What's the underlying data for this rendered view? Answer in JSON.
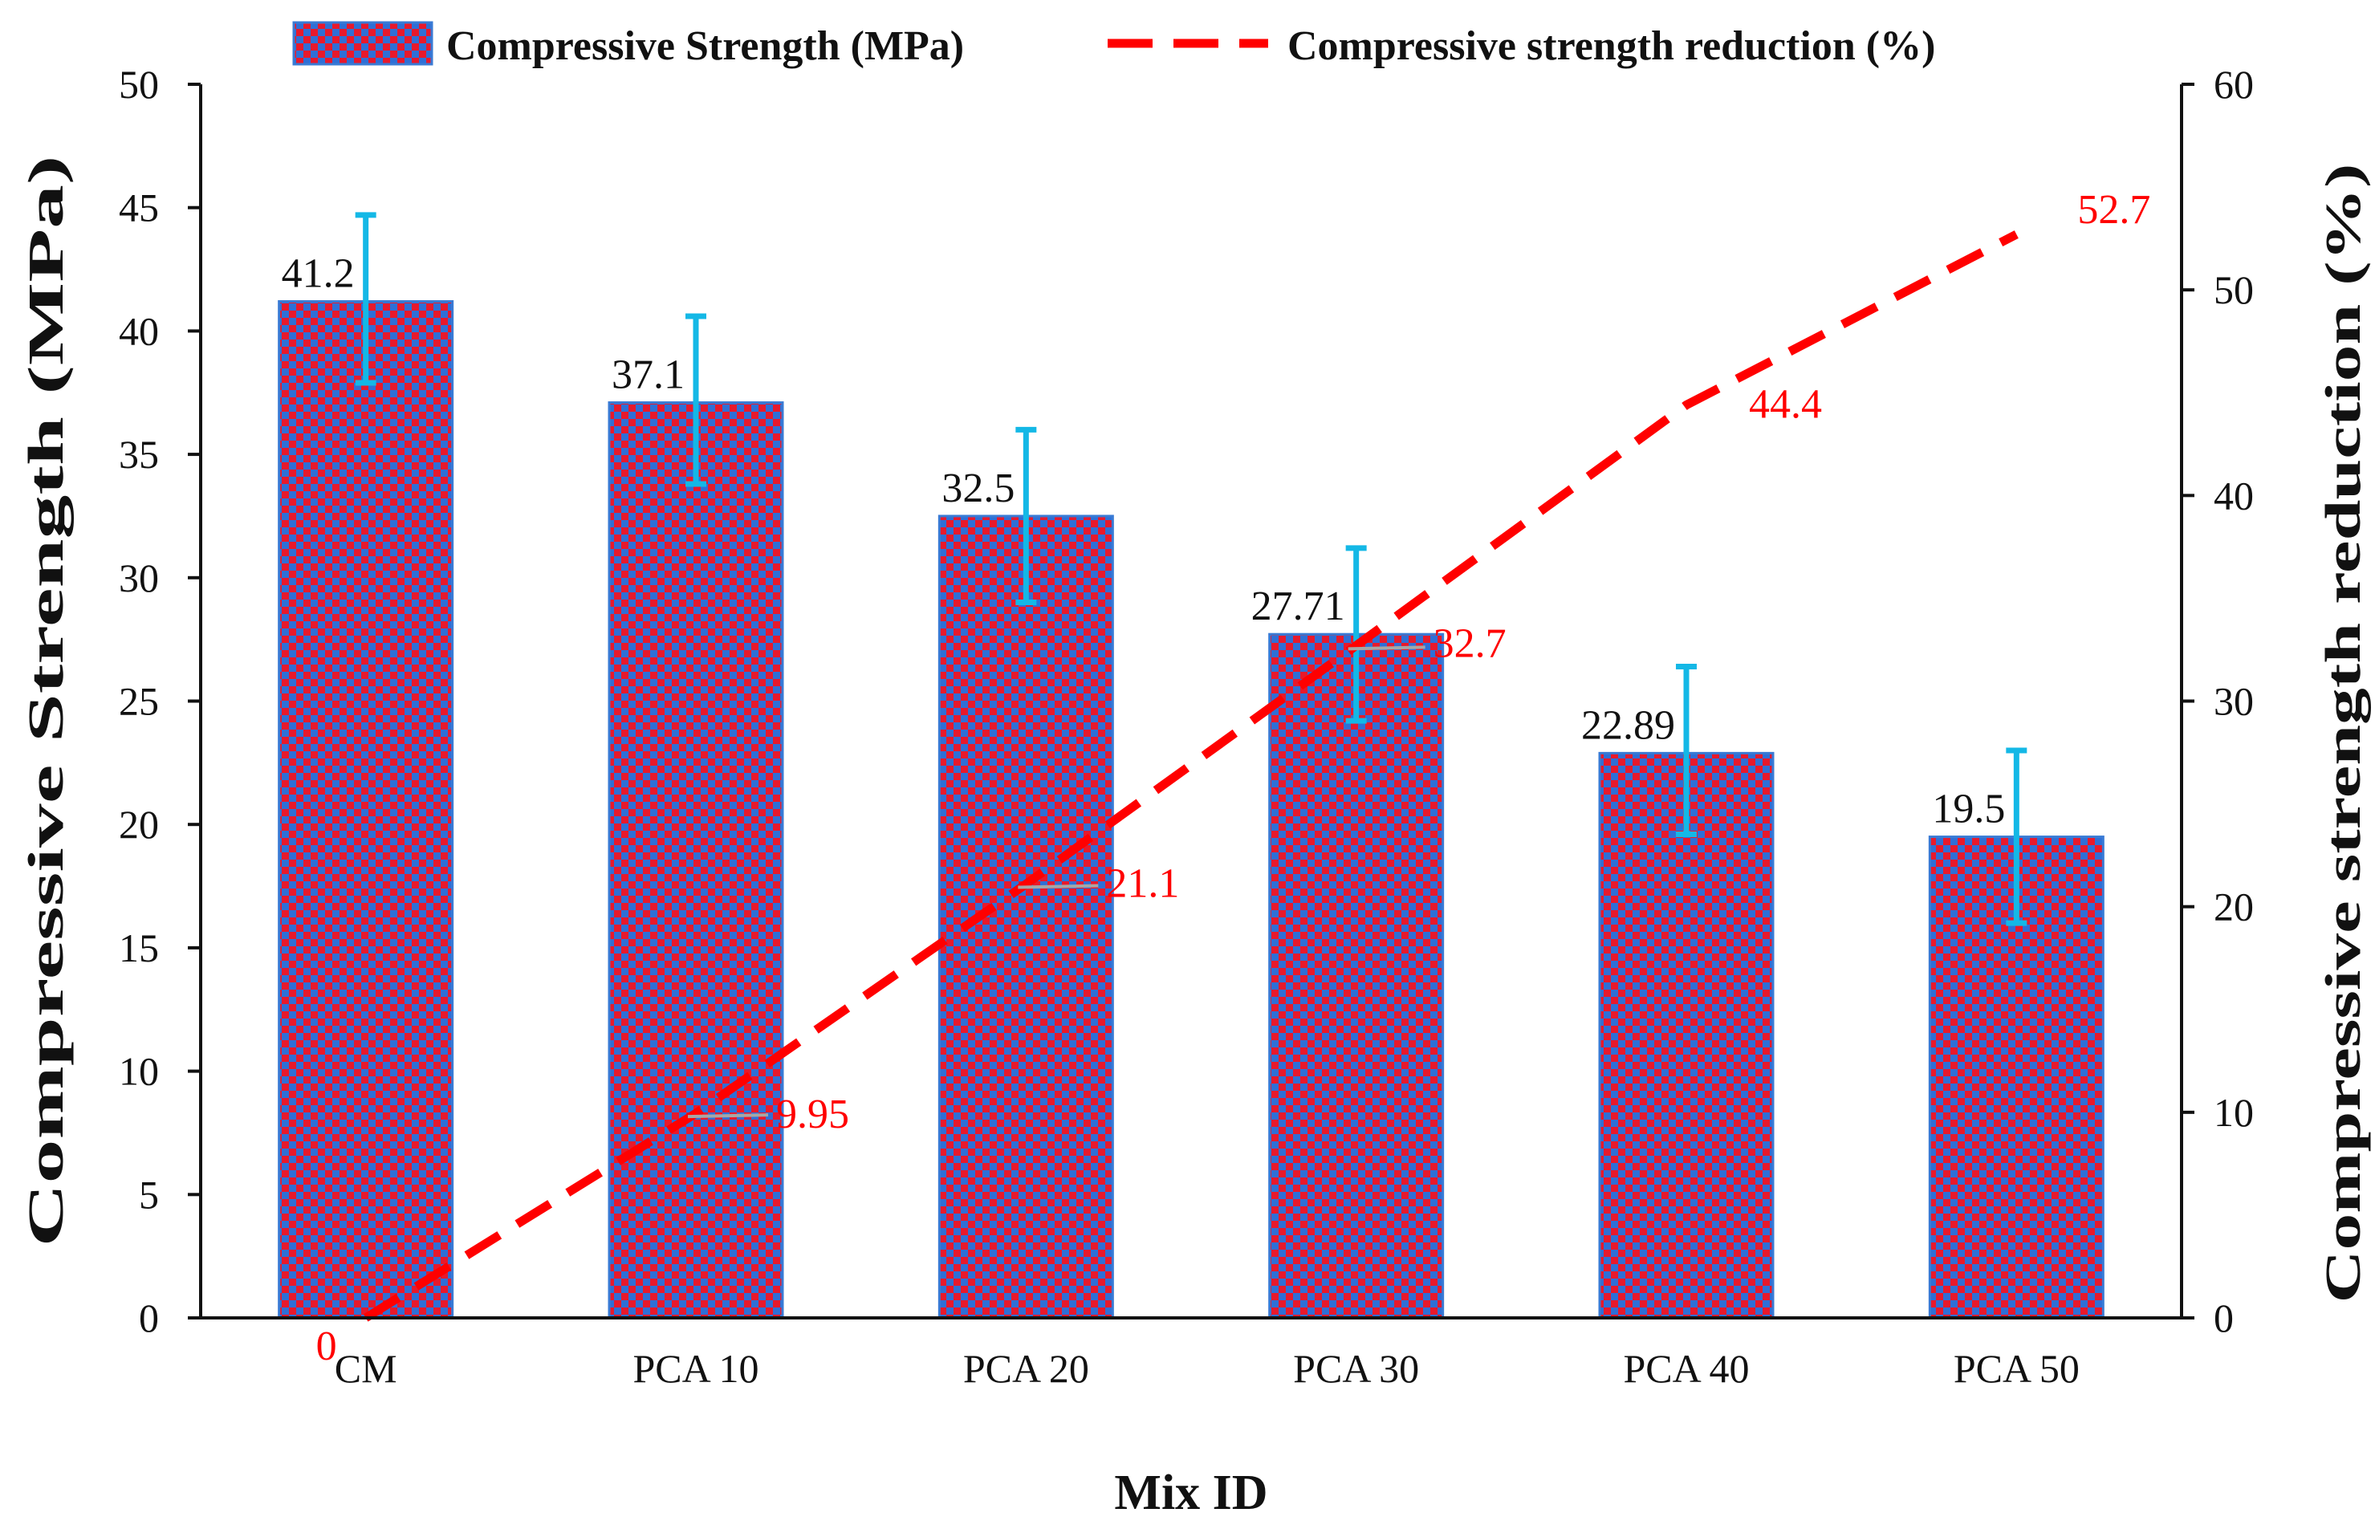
{
  "chart_data": {
    "type": "bar",
    "categories": [
      "CM",
      "PCA 10",
      "PCA 20",
      "PCA 30",
      "PCA 40",
      "PCA 50"
    ],
    "series": [
      {
        "name": "Compressive Strength (MPa)",
        "type": "bar",
        "axis": "left",
        "values": [
          41.2,
          37.1,
          32.5,
          27.71,
          22.89,
          19.5
        ],
        "labels": [
          "41.2",
          "37.1",
          "32.5",
          "27.71",
          "22.89",
          "19.5"
        ],
        "error_low": [
          37.9,
          33.8,
          29.0,
          24.2,
          19.6,
          16.0
        ],
        "error_high": [
          44.7,
          40.6,
          36.0,
          31.2,
          26.4,
          23.0
        ],
        "color": "#e8192c",
        "pattern_color": "#2f6fd6",
        "error_color": "#14b8e6"
      },
      {
        "name": "Compressive strength reduction (%)",
        "type": "line",
        "axis": "right",
        "style": "dashed",
        "values": [
          0,
          9.95,
          21.1,
          32.7,
          44.4,
          52.7
        ],
        "labels": [
          "0",
          "9.95",
          "21.1",
          "32.7",
          "44.4",
          "52.7"
        ],
        "color": "#ff0000"
      }
    ],
    "xlabel": "Mix ID",
    "ylabel": "Compressive Strength (MPa)",
    "ylabel_right": "Compressive strength reduction (%)",
    "ylim": [
      0,
      50
    ],
    "ylim_right": [
      0,
      60
    ],
    "yticks": [
      "0",
      "5",
      "10",
      "15",
      "20",
      "25",
      "30",
      "35",
      "40",
      "45",
      "50"
    ],
    "yticks_right": [
      "0",
      "10",
      "20",
      "30",
      "40",
      "50",
      "60"
    ],
    "grid": false,
    "legend": "top"
  }
}
